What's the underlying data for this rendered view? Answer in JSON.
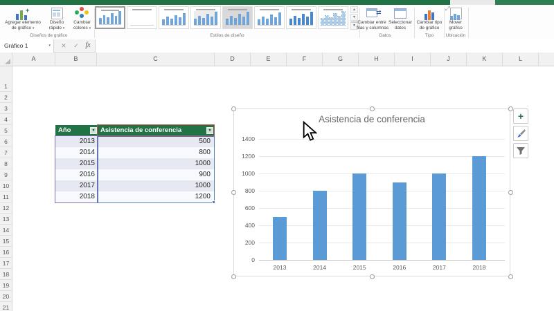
{
  "glyphs": {
    "dropdown": "▾",
    "close": "✕",
    "check": "✓",
    "up": "▲",
    "down": "▼"
  },
  "ribbon": {
    "buttons": {
      "agregar": {
        "line1": "Agregar elemento",
        "line2": "de gráfico"
      },
      "diseno_rapido": {
        "line1": "Diseño",
        "line2": "rápido"
      },
      "cambiar_colores": {
        "line1": "Cambiar",
        "line2": "colores"
      },
      "cambiar_filas": {
        "line1": "Cambiar entre",
        "line2": "filas y columnas"
      },
      "seleccionar_datos": {
        "line1": "Seleccionar",
        "line2": "datos"
      },
      "cambiar_tipo": {
        "line1": "Cambiar tipo",
        "line2": "de gráfico"
      },
      "mover_grafico": {
        "line1": "Mover",
        "line2": "gráfico"
      }
    },
    "group_labels": {
      "disenos": "Diseños de gráfico",
      "estilos": "Estilos de diseño",
      "datos": "Datos",
      "tipo": "Tipo",
      "ubicacion": "Ubicación"
    },
    "gallery": {
      "items": [
        {
          "variant": "selected"
        },
        {
          "variant": "thin"
        },
        {
          "variant": "plain"
        },
        {
          "variant": "gray"
        },
        {
          "variant": "hl"
        },
        {
          "variant": "plain"
        },
        {
          "variant": "dark"
        },
        {
          "variant": "light"
        }
      ]
    }
  },
  "formula_bar": {
    "name_box": "Gráfico 1",
    "fx_label": "fx"
  },
  "grid": {
    "columns": [
      "A",
      "B",
      "C",
      "D",
      "E",
      "F",
      "G",
      "H",
      "I",
      "J",
      "K",
      "L"
    ],
    "rows": [
      1,
      2,
      3,
      4,
      5,
      6,
      7,
      8,
      9,
      10,
      11,
      12,
      13,
      14,
      15,
      16,
      17,
      18,
      19,
      20,
      21
    ]
  },
  "table": {
    "headers": [
      "Año",
      "Asistencia de conferencia"
    ],
    "rows": [
      [
        "2013",
        "500"
      ],
      [
        "2014",
        "800"
      ],
      [
        "2015",
        "1000"
      ],
      [
        "2016",
        "900"
      ],
      [
        "2017",
        "1000"
      ],
      [
        "2018",
        "1200"
      ]
    ]
  },
  "chart_data": {
    "type": "bar",
    "title": "Asistencia de conferencia",
    "categories": [
      "2013",
      "2014",
      "2015",
      "2016",
      "2017",
      "2018"
    ],
    "values": [
      500,
      800,
      1000,
      900,
      1000,
      1200
    ],
    "xlabel": "",
    "ylabel": "",
    "ylim": [
      0,
      1400
    ],
    "yticks": [
      0,
      200,
      400,
      600,
      800,
      1000,
      1200,
      1400
    ],
    "grid": true,
    "legend": false,
    "bar_color": "#5b9bd5"
  },
  "side_buttons": [
    {
      "name": "chart-elements-button",
      "icon": "plus-icon",
      "glyph": "+"
    },
    {
      "name": "chart-styles-button",
      "icon": "brush-icon"
    },
    {
      "name": "chart-filters-button",
      "icon": "funnel-icon"
    }
  ],
  "colors": {
    "excel_green": "#217346",
    "bar_blue": "#5b9bd5",
    "table_header_green": "#217346",
    "selection_purple": "#7a6eb0",
    "selection_blue": "#4e7dc0",
    "selection_red": "#b85450"
  }
}
